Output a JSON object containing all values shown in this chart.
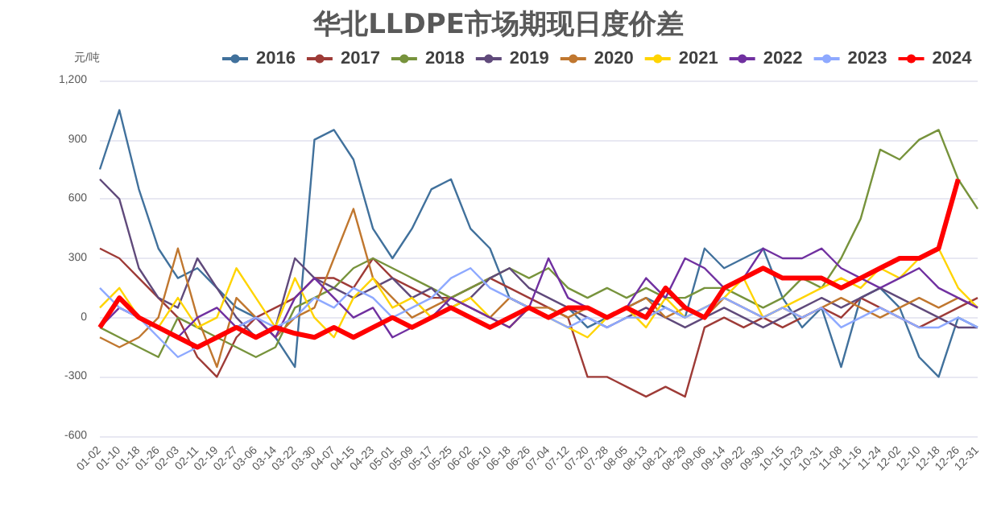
{
  "chart_data": {
    "type": "line",
    "title": "华北LLDPE市场期现日度价差",
    "ylabel": "元/吨",
    "categories": [
      "01-02",
      "01-10",
      "01-18",
      "01-26",
      "02-03",
      "02-11",
      "02-19",
      "02-27",
      "03-06",
      "03-14",
      "03-22",
      "03-30",
      "04-07",
      "04-15",
      "04-23",
      "05-01",
      "05-09",
      "05-17",
      "05-25",
      "06-02",
      "06-10",
      "06-18",
      "06-26",
      "07-04",
      "07-12",
      "07-20",
      "07-28",
      "08-05",
      "08-13",
      "08-21",
      "08-29",
      "09-06",
      "09-14",
      "09-22",
      "09-30",
      "10-15",
      "10-23",
      "10-31",
      "11-08",
      "11-16",
      "11-24",
      "12-02",
      "12-10",
      "12-18",
      "12-26",
      "12-31"
    ],
    "series": [
      {
        "name": "2016",
        "color": "#41719c",
        "values": [
          750,
          1050,
          650,
          350,
          200,
          250,
          150,
          50,
          0,
          -100,
          -250,
          900,
          950,
          800,
          450,
          300,
          450,
          650,
          700,
          450,
          350,
          100,
          50,
          0,
          50,
          -50,
          0,
          50,
          100,
          50,
          0,
          350,
          250,
          300,
          350,
          100,
          -50,
          50,
          -250,
          100,
          150,
          50,
          -200,
          -300,
          0,
          -50
        ]
      },
      {
        "name": "2017",
        "color": "#9e3b37",
        "values": [
          350,
          300,
          200,
          100,
          0,
          -200,
          -300,
          -100,
          0,
          50,
          100,
          200,
          200,
          150,
          300,
          200,
          150,
          100,
          100,
          150,
          200,
          150,
          100,
          50,
          0,
          -300,
          -300,
          -350,
          -400,
          -350,
          -400,
          -50,
          0,
          -50,
          0,
          -50,
          0,
          50,
          0,
          100,
          50,
          0,
          -50,
          0,
          50,
          100
        ]
      },
      {
        "name": "2018",
        "color": "#77933c",
        "values": [
          -50,
          -100,
          -150,
          -200,
          0,
          -50,
          -100,
          -150,
          -200,
          -150,
          50,
          100,
          150,
          250,
          300,
          250,
          200,
          150,
          100,
          150,
          200,
          250,
          200,
          250,
          150,
          100,
          150,
          100,
          150,
          100,
          100,
          150,
          150,
          100,
          50,
          100,
          200,
          150,
          300,
          500,
          850,
          800,
          900,
          950,
          700,
          550
        ]
      },
      {
        "name": "2019",
        "color": "#604a7b",
        "values": [
          700,
          600,
          250,
          100,
          50,
          300,
          150,
          0,
          -100,
          -50,
          300,
          200,
          150,
          100,
          150,
          200,
          100,
          150,
          50,
          100,
          200,
          250,
          150,
          100,
          50,
          0,
          -50,
          0,
          50,
          0,
          -50,
          0,
          50,
          0,
          -50,
          0,
          50,
          100,
          50,
          100,
          150,
          100,
          50,
          0,
          -50,
          -50
        ]
      },
      {
        "name": "2020",
        "color": "#c0772f",
        "values": [
          -100,
          -150,
          -100,
          0,
          350,
          0,
          -250,
          100,
          0,
          -100,
          0,
          50,
          300,
          550,
          200,
          100,
          0,
          50,
          100,
          50,
          0,
          100,
          50,
          50,
          0,
          50,
          0,
          50,
          100,
          0,
          50,
          0,
          100,
          50,
          0,
          50,
          0,
          50,
          100,
          50,
          0,
          50,
          100,
          50,
          100,
          50
        ]
      },
      {
        "name": "2021",
        "color": "#ffd400",
        "values": [
          50,
          150,
          0,
          -50,
          100,
          -50,
          0,
          250,
          100,
          -50,
          200,
          0,
          -100,
          100,
          200,
          50,
          100,
          0,
          50,
          100,
          0,
          -50,
          50,
          0,
          -50,
          -100,
          0,
          50,
          -50,
          100,
          0,
          50,
          100,
          200,
          0,
          50,
          100,
          150,
          200,
          150,
          250,
          200,
          300,
          350,
          150,
          50
        ]
      },
      {
        "name": "2022",
        "color": "#7030a0",
        "values": [
          -50,
          50,
          0,
          -50,
          -100,
          0,
          50,
          -50,
          0,
          -100,
          100,
          200,
          100,
          0,
          50,
          -100,
          -50,
          0,
          100,
          50,
          0,
          -50,
          50,
          300,
          100,
          50,
          0,
          50,
          200,
          100,
          300,
          250,
          150,
          200,
          350,
          300,
          300,
          350,
          250,
          200,
          150,
          200,
          250,
          150,
          100,
          50
        ]
      },
      {
        "name": "2023",
        "color": "#8ea9ff",
        "values": [
          150,
          50,
          0,
          -100,
          -200,
          -150,
          -100,
          -50,
          0,
          -50,
          0,
          100,
          50,
          150,
          100,
          0,
          50,
          100,
          200,
          250,
          150,
          100,
          50,
          0,
          -50,
          0,
          -50,
          0,
          0,
          50,
          0,
          50,
          100,
          50,
          0,
          50,
          0,
          50,
          -50,
          0,
          50,
          0,
          -50,
          -50,
          0,
          -50
        ]
      },
      {
        "name": "2024",
        "color": "#ff0000",
        "values": [
          -50,
          100,
          0,
          -50,
          -100,
          -150,
          -100,
          -50,
          -100,
          -50,
          -80,
          -100,
          -50,
          -100,
          -50,
          0,
          -50,
          0,
          50,
          0,
          -50,
          0,
          50,
          0,
          50,
          50,
          0,
          50,
          0,
          150,
          50,
          0,
          150,
          200,
          250,
          200,
          200,
          200,
          150,
          200,
          250,
          300,
          300,
          350,
          700,
          null
        ]
      }
    ],
    "ylim": [
      -600,
      1200
    ],
    "yticks": [
      -600,
      -300,
      0,
      300,
      600,
      900,
      {
        "value": 1200,
        "label": "1,200"
      }
    ],
    "grid": "y",
    "legend": "top"
  }
}
